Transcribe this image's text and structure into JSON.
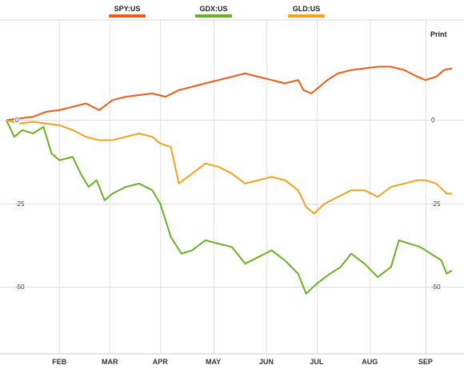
{
  "legend": [
    {
      "label": "SPY:US",
      "color": "#f05a14"
    },
    {
      "label": "GDX:US",
      "color": "#6ab023"
    },
    {
      "label": "GLD:US",
      "color": "#f5a11c"
    }
  ],
  "print_label": "Print",
  "chart_data": {
    "type": "line",
    "ylim": [
      -70,
      30
    ],
    "yticks": [
      {
        "value": 0,
        "label": "0"
      },
      {
        "value": -25,
        "label": "-25"
      },
      {
        "value": -50,
        "label": "-50"
      }
    ],
    "xlim": [
      0,
      168
    ],
    "xticks": [
      {
        "x": 20,
        "label": "FEB"
      },
      {
        "x": 39,
        "label": "MAR"
      },
      {
        "x": 58,
        "label": "APR"
      },
      {
        "x": 78,
        "label": "MAY"
      },
      {
        "x": 98,
        "label": "JUN"
      },
      {
        "x": 117,
        "label": "JUL"
      },
      {
        "x": 137,
        "label": "AUG"
      },
      {
        "x": 158,
        "label": "SEP"
      }
    ],
    "grid": true,
    "series": [
      {
        "name": "SPY:US",
        "color": "#f05a14",
        "points": [
          [
            0,
            0
          ],
          [
            5,
            0.5
          ],
          [
            10,
            1
          ],
          [
            15,
            2.5
          ],
          [
            20,
            3
          ],
          [
            25,
            4
          ],
          [
            30,
            5
          ],
          [
            35,
            3
          ],
          [
            40,
            6
          ],
          [
            45,
            7
          ],
          [
            50,
            7.5
          ],
          [
            55,
            8
          ],
          [
            60,
            7
          ],
          [
            65,
            9
          ],
          [
            70,
            10
          ],
          [
            75,
            11
          ],
          [
            80,
            12
          ],
          [
            85,
            13
          ],
          [
            90,
            14
          ],
          [
            95,
            13
          ],
          [
            100,
            12
          ],
          [
            105,
            11
          ],
          [
            110,
            12
          ],
          [
            112,
            9
          ],
          [
            115,
            8
          ],
          [
            118,
            10
          ],
          [
            121,
            12
          ],
          [
            125,
            14
          ],
          [
            130,
            15
          ],
          [
            135,
            15.5
          ],
          [
            140,
            16
          ],
          [
            145,
            16
          ],
          [
            150,
            15
          ],
          [
            155,
            13
          ],
          [
            158,
            12
          ],
          [
            162,
            13
          ],
          [
            165,
            15
          ],
          [
            168,
            15.5
          ]
        ]
      },
      {
        "name": "GDX:US",
        "color": "#6ab023",
        "points": [
          [
            0,
            0
          ],
          [
            3,
            -5
          ],
          [
            6,
            -3
          ],
          [
            10,
            -4
          ],
          [
            14,
            -2
          ],
          [
            17,
            -10
          ],
          [
            20,
            -12
          ],
          [
            25,
            -11
          ],
          [
            28,
            -16
          ],
          [
            31,
            -20
          ],
          [
            34,
            -18
          ],
          [
            37,
            -24
          ],
          [
            40,
            -22
          ],
          [
            45,
            -20
          ],
          [
            50,
            -19
          ],
          [
            55,
            -21
          ],
          [
            58,
            -25
          ],
          [
            62,
            -35
          ],
          [
            66,
            -40
          ],
          [
            70,
            -39
          ],
          [
            75,
            -36
          ],
          [
            80,
            -37
          ],
          [
            85,
            -38
          ],
          [
            90,
            -43
          ],
          [
            95,
            -41
          ],
          [
            100,
            -39
          ],
          [
            105,
            -42
          ],
          [
            110,
            -46
          ],
          [
            113,
            -52
          ],
          [
            117,
            -49
          ],
          [
            122,
            -46
          ],
          [
            126,
            -44
          ],
          [
            130,
            -40
          ],
          [
            135,
            -43
          ],
          [
            140,
            -47
          ],
          [
            145,
            -44
          ],
          [
            148,
            -36
          ],
          [
            152,
            -37
          ],
          [
            156,
            -38
          ],
          [
            160,
            -40
          ],
          [
            164,
            -42
          ],
          [
            166,
            -46
          ],
          [
            168,
            -45
          ]
        ]
      },
      {
        "name": "GLD:US",
        "color": "#f5a11c",
        "points": [
          [
            0,
            0
          ],
          [
            5,
            -1
          ],
          [
            10,
            -0.5
          ],
          [
            15,
            -1
          ],
          [
            20,
            -1.5
          ],
          [
            25,
            -3
          ],
          [
            30,
            -5
          ],
          [
            35,
            -6
          ],
          [
            40,
            -6
          ],
          [
            45,
            -5
          ],
          [
            50,
            -4
          ],
          [
            55,
            -5
          ],
          [
            58,
            -7
          ],
          [
            62,
            -8
          ],
          [
            65,
            -19
          ],
          [
            70,
            -16
          ],
          [
            75,
            -13
          ],
          [
            80,
            -14
          ],
          [
            85,
            -16
          ],
          [
            90,
            -19
          ],
          [
            95,
            -18
          ],
          [
            100,
            -17
          ],
          [
            105,
            -18
          ],
          [
            110,
            -21
          ],
          [
            113,
            -26
          ],
          [
            116,
            -28
          ],
          [
            120,
            -25
          ],
          [
            125,
            -23
          ],
          [
            130,
            -21
          ],
          [
            135,
            -21
          ],
          [
            140,
            -23
          ],
          [
            145,
            -20
          ],
          [
            150,
            -19
          ],
          [
            155,
            -18
          ],
          [
            158,
            -18
          ],
          [
            162,
            -19
          ],
          [
            166,
            -22
          ],
          [
            168,
            -22
          ]
        ]
      }
    ]
  }
}
